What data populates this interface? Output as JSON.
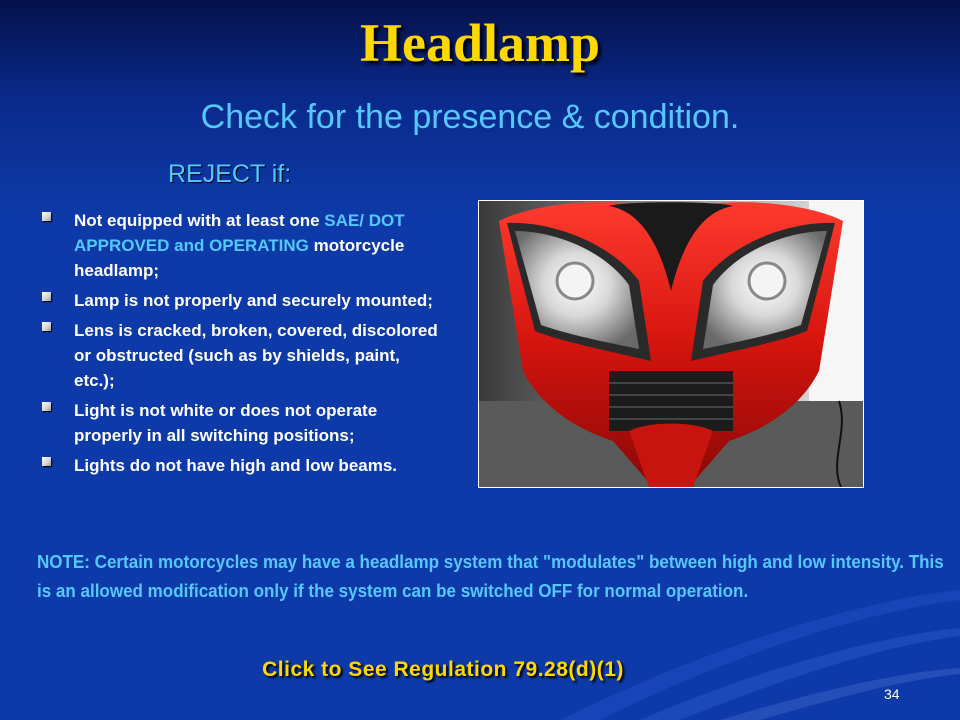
{
  "slide": {
    "title": "Headlamp",
    "subtitle": "Check for the presence & condition.",
    "reject_heading": "REJECT if:",
    "bullets": [
      {
        "pre": "Not equipped with at least one ",
        "highlight": "SAE/ DOT APPROVED and OPERATING",
        "post": " motorcycle headlamp;"
      },
      {
        "pre": "Lamp is not properly and securely mounted;",
        "highlight": "",
        "post": ""
      },
      {
        "pre": "Lens is cracked, broken, covered, discolored or obstructed (such as by shields, paint, etc.);",
        "highlight": "",
        "post": ""
      },
      {
        "pre": "Light is not white or does not operate properly in all switching positions;",
        "highlight": "",
        "post": ""
      },
      {
        "pre": "Lights do not have high and low beams.",
        "highlight": "",
        "post": ""
      }
    ],
    "note": "NOTE:  Certain motorcycles may have a headlamp system that \"modulates\" between high and low intensity.  This is an allowed modification only if the system can be switched OFF for normal operation.",
    "regulation_link": "Click to See Regulation 79.28(d)(1)",
    "page_number": "34",
    "photo_icon": "motorcycle-headlamp-photo"
  },
  "colors": {
    "title": "#ffd800",
    "accent_text": "#55c8ff",
    "background": "#0d3aa8",
    "body_text": "#ffffff"
  }
}
